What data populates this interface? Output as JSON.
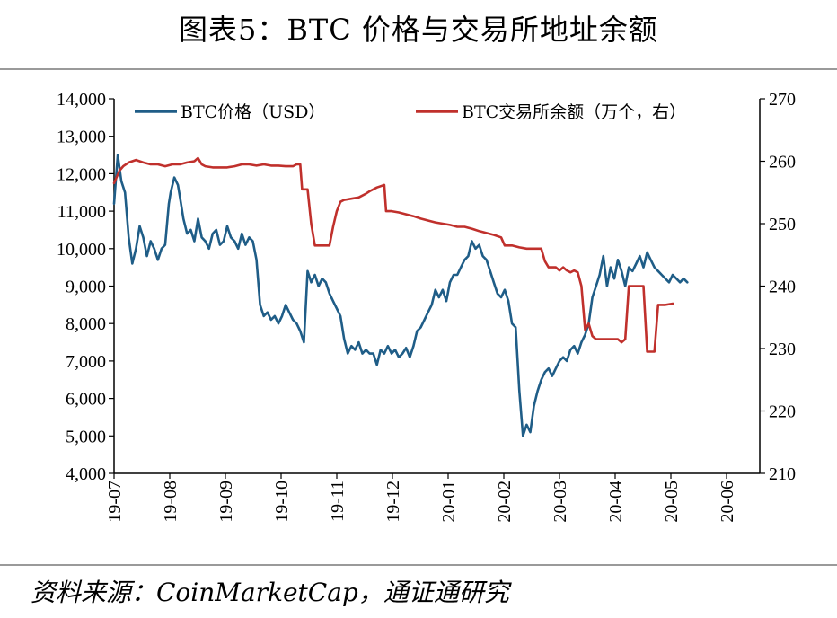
{
  "title": "图表5：BTC 价格与交易所地址余额",
  "source": "资料来源：CoinMarketCap，通证通研究",
  "chart_data": {
    "type": "line",
    "x_labels": [
      "19-07",
      "19-08",
      "19-09",
      "19-10",
      "19-11",
      "19-12",
      "20-01",
      "20-02",
      "20-03",
      "20-04",
      "20-05",
      "20-06"
    ],
    "y_left": {
      "min": 4000,
      "max": 14000,
      "ticks": [
        "4,000",
        "5,000",
        "6,000",
        "7,000",
        "8,000",
        "9,000",
        "10,000",
        "11,000",
        "12,000",
        "13,000",
        "14,000"
      ]
    },
    "y_right": {
      "min": 210,
      "max": 270,
      "ticks": [
        "210",
        "220",
        "230",
        "240",
        "250",
        "260",
        "270"
      ]
    },
    "x_start": "2019-07-01",
    "series": [
      {
        "name": "BTC价格（USD）",
        "axis": "left",
        "color": "#1f5d87",
        "points": [
          [
            0,
            11200
          ],
          [
            2,
            12500
          ],
          [
            4,
            11800
          ],
          [
            6,
            11500
          ],
          [
            8,
            10300
          ],
          [
            10,
            9600
          ],
          [
            12,
            10000
          ],
          [
            14,
            10600
          ],
          [
            16,
            10300
          ],
          [
            18,
            9800
          ],
          [
            20,
            10200
          ],
          [
            22,
            10000
          ],
          [
            24,
            9700
          ],
          [
            26,
            10000
          ],
          [
            28,
            10100
          ],
          [
            30,
            11200
          ],
          [
            31,
            11500
          ],
          [
            33,
            11900
          ],
          [
            35,
            11700
          ],
          [
            36,
            11400
          ],
          [
            38,
            10800
          ],
          [
            40,
            10400
          ],
          [
            42,
            10500
          ],
          [
            44,
            10200
          ],
          [
            46,
            10800
          ],
          [
            48,
            10300
          ],
          [
            50,
            10200
          ],
          [
            52,
            10000
          ],
          [
            54,
            10400
          ],
          [
            56,
            10500
          ],
          [
            58,
            10100
          ],
          [
            60,
            10200
          ],
          [
            62,
            10600
          ],
          [
            64,
            10300
          ],
          [
            66,
            10200
          ],
          [
            68,
            10000
          ],
          [
            70,
            10400
          ],
          [
            72,
            10100
          ],
          [
            74,
            10300
          ],
          [
            76,
            10200
          ],
          [
            78,
            9700
          ],
          [
            80,
            8500
          ],
          [
            82,
            8200
          ],
          [
            84,
            8300
          ],
          [
            86,
            8100
          ],
          [
            88,
            8200
          ],
          [
            90,
            8000
          ],
          [
            92,
            8200
          ],
          [
            94,
            8500
          ],
          [
            96,
            8300
          ],
          [
            98,
            8100
          ],
          [
            100,
            8000
          ],
          [
            102,
            7800
          ],
          [
            104,
            7500
          ],
          [
            106,
            9400
          ],
          [
            108,
            9100
          ],
          [
            110,
            9300
          ],
          [
            112,
            9000
          ],
          [
            114,
            9200
          ],
          [
            116,
            9100
          ],
          [
            118,
            8800
          ],
          [
            120,
            8600
          ],
          [
            122,
            8400
          ],
          [
            124,
            8200
          ],
          [
            126,
            7600
          ],
          [
            128,
            7200
          ],
          [
            130,
            7400
          ],
          [
            132,
            7300
          ],
          [
            134,
            7500
          ],
          [
            136,
            7200
          ],
          [
            138,
            7300
          ],
          [
            140,
            7200
          ],
          [
            142,
            7200
          ],
          [
            144,
            6900
          ],
          [
            146,
            7300
          ],
          [
            148,
            7200
          ],
          [
            150,
            7400
          ],
          [
            152,
            7200
          ],
          [
            154,
            7300
          ],
          [
            156,
            7100
          ],
          [
            158,
            7200
          ],
          [
            160,
            7350
          ],
          [
            162,
            7100
          ],
          [
            164,
            7400
          ],
          [
            166,
            7800
          ],
          [
            168,
            7900
          ],
          [
            170,
            8100
          ],
          [
            172,
            8300
          ],
          [
            174,
            8500
          ],
          [
            176,
            8900
          ],
          [
            178,
            8700
          ],
          [
            180,
            8900
          ],
          [
            182,
            8600
          ],
          [
            184,
            9100
          ],
          [
            186,
            9300
          ],
          [
            188,
            9300
          ],
          [
            190,
            9500
          ],
          [
            192,
            9700
          ],
          [
            194,
            9800
          ],
          [
            196,
            10200
          ],
          [
            198,
            10000
          ],
          [
            200,
            10100
          ],
          [
            202,
            9800
          ],
          [
            204,
            9700
          ],
          [
            206,
            9400
          ],
          [
            208,
            9100
          ],
          [
            210,
            8800
          ],
          [
            212,
            8700
          ],
          [
            214,
            8900
          ],
          [
            216,
            8600
          ],
          [
            218,
            8000
          ],
          [
            220,
            7900
          ],
          [
            222,
            6200
          ],
          [
            224,
            5000
          ],
          [
            226,
            5300
          ],
          [
            228,
            5100
          ],
          [
            230,
            5800
          ],
          [
            232,
            6200
          ],
          [
            234,
            6500
          ],
          [
            236,
            6700
          ],
          [
            238,
            6800
          ],
          [
            240,
            6600
          ],
          [
            242,
            6800
          ],
          [
            244,
            7000
          ],
          [
            246,
            7100
          ],
          [
            248,
            7000
          ],
          [
            250,
            7300
          ],
          [
            252,
            7400
          ],
          [
            254,
            7200
          ],
          [
            256,
            7500
          ],
          [
            258,
            7700
          ],
          [
            260,
            8000
          ],
          [
            262,
            8700
          ],
          [
            264,
            9000
          ],
          [
            266,
            9300
          ],
          [
            268,
            9800
          ],
          [
            270,
            9000
          ],
          [
            272,
            9500
          ],
          [
            274,
            9200
          ],
          [
            276,
            9700
          ],
          [
            278,
            9400
          ],
          [
            280,
            9000
          ],
          [
            282,
            9500
          ],
          [
            284,
            9400
          ],
          [
            286,
            9600
          ],
          [
            288,
            9800
          ],
          [
            290,
            9500
          ],
          [
            292,
            9900
          ],
          [
            294,
            9700
          ],
          [
            296,
            9500
          ],
          [
            298,
            9400
          ],
          [
            300,
            9300
          ],
          [
            302,
            9200
          ],
          [
            304,
            9100
          ],
          [
            306,
            9300
          ],
          [
            308,
            9200
          ],
          [
            310,
            9100
          ],
          [
            312,
            9200
          ],
          [
            314,
            9100
          ]
        ]
      },
      {
        "name": "BTC交易所余额（万个，右）",
        "axis": "right",
        "color": "#c0302c",
        "points": [
          [
            0,
            256.5
          ],
          [
            3,
            258.5
          ],
          [
            5,
            259.2
          ],
          [
            8,
            259.8
          ],
          [
            12,
            260.2
          ],
          [
            16,
            259.8
          ],
          [
            20,
            259.5
          ],
          [
            24,
            259.5
          ],
          [
            28,
            259.2
          ],
          [
            32,
            259.5
          ],
          [
            36,
            259.5
          ],
          [
            40,
            259.8
          ],
          [
            44,
            260
          ],
          [
            46,
            260.5
          ],
          [
            48,
            259.5
          ],
          [
            50,
            259.2
          ],
          [
            54,
            259
          ],
          [
            58,
            259
          ],
          [
            62,
            259
          ],
          [
            66,
            259.2
          ],
          [
            70,
            259.5
          ],
          [
            74,
            259.5
          ],
          [
            78,
            259.3
          ],
          [
            82,
            259.5
          ],
          [
            86,
            259.3
          ],
          [
            90,
            259.3
          ],
          [
            94,
            259.2
          ],
          [
            98,
            259.2
          ],
          [
            100,
            259.5
          ],
          [
            102,
            259.5
          ],
          [
            103,
            255.5
          ],
          [
            106,
            255.5
          ],
          [
            108,
            250
          ],
          [
            110,
            246.5
          ],
          [
            114,
            246.5
          ],
          [
            118,
            246.5
          ],
          [
            120,
            249.5
          ],
          [
            122,
            252
          ],
          [
            124,
            253.5
          ],
          [
            126,
            253.8
          ],
          [
            130,
            254
          ],
          [
            134,
            254.2
          ],
          [
            138,
            254.8
          ],
          [
            140,
            255.2
          ],
          [
            144,
            255.8
          ],
          [
            146,
            256
          ],
          [
            148,
            256.2
          ],
          [
            149,
            252
          ],
          [
            152,
            252
          ],
          [
            156,
            251.8
          ],
          [
            160,
            251.5
          ],
          [
            164,
            251.2
          ],
          [
            168,
            250.8
          ],
          [
            172,
            250.5
          ],
          [
            176,
            250.2
          ],
          [
            180,
            250
          ],
          [
            184,
            249.8
          ],
          [
            188,
            249.5
          ],
          [
            192,
            249.5
          ],
          [
            196,
            249.2
          ],
          [
            200,
            248.8
          ],
          [
            204,
            248.5
          ],
          [
            208,
            248.2
          ],
          [
            212,
            247.8
          ],
          [
            214,
            246.5
          ],
          [
            218,
            246.5
          ],
          [
            222,
            246.2
          ],
          [
            226,
            246
          ],
          [
            230,
            246
          ],
          [
            234,
            246
          ],
          [
            236,
            244
          ],
          [
            238,
            243
          ],
          [
            242,
            243
          ],
          [
            244,
            242.5
          ],
          [
            246,
            243
          ],
          [
            248,
            242.5
          ],
          [
            250,
            242.2
          ],
          [
            252,
            242.5
          ],
          [
            254,
            242.2
          ],
          [
            256,
            240
          ],
          [
            258,
            233
          ],
          [
            260,
            234
          ],
          [
            262,
            232
          ],
          [
            264,
            231.5
          ],
          [
            268,
            231.5
          ],
          [
            272,
            231.5
          ],
          [
            276,
            231.5
          ],
          [
            278,
            231
          ],
          [
            280,
            231.5
          ],
          [
            282,
            240
          ],
          [
            286,
            240
          ],
          [
            290,
            240
          ],
          [
            292,
            229.5
          ],
          [
            294,
            229.5
          ],
          [
            296,
            229.5
          ],
          [
            298,
            237
          ],
          [
            302,
            237
          ],
          [
            306,
            237.2
          ]
        ]
      }
    ]
  }
}
